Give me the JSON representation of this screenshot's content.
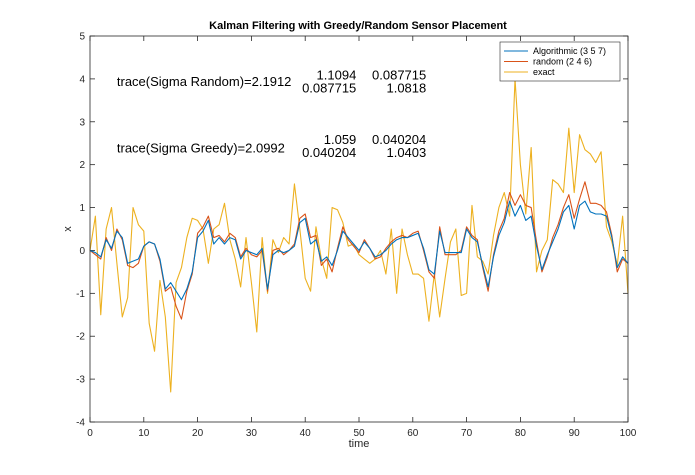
{
  "chart_data": {
    "type": "line",
    "title": "Kalman Filtering with Greedy/Random Sensor Placement",
    "xlabel": "time",
    "ylabel": "x",
    "xlim": [
      0,
      100
    ],
    "ylim": [
      -4,
      5
    ],
    "xticks": [
      0,
      10,
      20,
      30,
      40,
      50,
      60,
      70,
      80,
      90,
      100
    ],
    "yticks": [
      -4,
      -3,
      -2,
      -1,
      0,
      1,
      2,
      3,
      4,
      5
    ],
    "legend_position": "top-right",
    "annotations": [
      {
        "text": "trace(Sigma Random)=2.1912",
        "x": 5,
        "y": 3.95
      },
      {
        "text": "1.1094",
        "x": 49.5,
        "y": 4.1
      },
      {
        "text": "0.087715",
        "x": 62.5,
        "y": 4.1
      },
      {
        "text": "0.087715",
        "x": 49.5,
        "y": 3.8
      },
      {
        "text": "1.0818",
        "x": 62.5,
        "y": 3.8
      },
      {
        "text": "trace(Sigma Greedy)=2.0992",
        "x": 5,
        "y": 2.4
      },
      {
        "text": "1.059",
        "x": 49.5,
        "y": 2.6
      },
      {
        "text": "0.040204",
        "x": 62.5,
        "y": 2.6
      },
      {
        "text": "0.040204",
        "x": 49.5,
        "y": 2.3
      },
      {
        "text": "1.0403",
        "x": 62.5,
        "y": 2.3
      }
    ],
    "series": [
      {
        "name": "Algorithmic (3  5  7)",
        "color": "#0072BD",
        "values": [
          0.0,
          -0.05,
          -0.15,
          0.25,
          0.05,
          0.45,
          0.3,
          -0.3,
          -0.25,
          -0.2,
          0.1,
          0.2,
          0.15,
          -0.2,
          -0.9,
          -0.75,
          -0.95,
          -1.15,
          -0.9,
          -0.5,
          0.3,
          0.45,
          0.7,
          0.15,
          0.3,
          0.15,
          0.3,
          0.25,
          -0.2,
          0.0,
          -0.05,
          -0.1,
          0.05,
          -0.9,
          -0.1,
          0.0,
          -0.05,
          0.0,
          0.1,
          0.65,
          0.75,
          0.15,
          0.25,
          -0.25,
          -0.15,
          -0.35,
          0.0,
          0.45,
          0.3,
          0.15,
          0.0,
          0.2,
          0.05,
          -0.15,
          -0.1,
          0.0,
          0.15,
          0.25,
          0.3,
          0.3,
          0.35,
          0.4,
          0.05,
          -0.45,
          -0.55,
          0.45,
          -0.05,
          -0.05,
          -0.05,
          -0.05,
          0.5,
          0.3,
          0.2,
          -0.35,
          -0.85,
          -0.15,
          0.35,
          0.65,
          1.15,
          0.8,
          1.05,
          0.7,
          0.8,
          0.1,
          -0.45,
          -0.1,
          0.2,
          0.5,
          0.9,
          1.05,
          0.5,
          1.05,
          1.15,
          0.9,
          0.85,
          0.85,
          0.8,
          0.3,
          -0.4,
          -0.15,
          -0.3
        ]
      },
      {
        "name": "random (2  4  6)",
        "color": "#D95319",
        "values": [
          0.0,
          -0.1,
          -0.2,
          0.3,
          0.0,
          0.5,
          0.25,
          -0.35,
          -0.4,
          -0.3,
          0.1,
          0.2,
          0.15,
          -0.25,
          -0.95,
          -0.85,
          -1.3,
          -1.6,
          -0.95,
          -0.55,
          0.4,
          0.55,
          0.8,
          0.3,
          0.35,
          0.2,
          0.4,
          0.3,
          -0.15,
          0.05,
          -0.1,
          -0.15,
          0.0,
          -0.95,
          0.0,
          0.05,
          -0.1,
          0.0,
          0.15,
          0.75,
          0.85,
          0.3,
          0.35,
          -0.35,
          -0.2,
          -0.5,
          0.05,
          0.55,
          0.25,
          0.1,
          -0.05,
          0.25,
          0.05,
          -0.2,
          -0.15,
          0.05,
          0.2,
          0.3,
          0.35,
          0.3,
          0.4,
          0.45,
          0.0,
          -0.5,
          -0.65,
          0.55,
          -0.1,
          -0.1,
          -0.1,
          0.0,
          0.55,
          0.35,
          0.25,
          -0.4,
          -0.95,
          -0.1,
          0.45,
          0.75,
          1.35,
          1.05,
          1.3,
          1.05,
          1.0,
          0.2,
          -0.5,
          -0.15,
          0.3,
          0.6,
          1.0,
          1.3,
          0.75,
          1.2,
          1.6,
          1.1,
          1.1,
          1.05,
          0.9,
          0.35,
          -0.5,
          -0.2,
          -0.3
        ]
      },
      {
        "name": "exact",
        "color": "#EDB120",
        "values": [
          0.0,
          0.8,
          -1.5,
          0.5,
          1.0,
          -0.3,
          -1.55,
          -1.1,
          1.0,
          0.6,
          0.45,
          -1.7,
          -2.35,
          -0.7,
          -1.55,
          -3.3,
          -0.75,
          -0.4,
          0.3,
          0.75,
          0.7,
          0.5,
          -0.3,
          0.5,
          0.6,
          1.1,
          0.25,
          -0.2,
          -0.85,
          0.3,
          -0.75,
          -1.9,
          0.3,
          -1.0,
          0.25,
          -0.05,
          0.3,
          0.15,
          1.55,
          0.5,
          -0.65,
          -0.95,
          0.55,
          -0.2,
          -0.65,
          1.0,
          0.95,
          0.65,
          0.1,
          0.15,
          -0.1,
          -0.2,
          -0.3,
          -0.2,
          0.0,
          -0.55,
          0.5,
          -1.0,
          0.5,
          -0.1,
          -0.55,
          -0.55,
          -0.65,
          -1.65,
          -0.55,
          -1.55,
          -0.65,
          0.2,
          0.5,
          -1.05,
          -1.0,
          1.05,
          -0.15,
          -0.25,
          -0.55,
          0.35,
          1.0,
          1.35,
          0.8,
          4.0,
          2.0,
          0.85,
          2.4,
          -0.5,
          0.0,
          0.25,
          1.65,
          1.55,
          1.35,
          2.85,
          1.35,
          2.7,
          2.35,
          2.25,
          2.05,
          2.3,
          0.55,
          0.2,
          -0.35,
          0.8,
          -1.0
        ]
      }
    ]
  }
}
